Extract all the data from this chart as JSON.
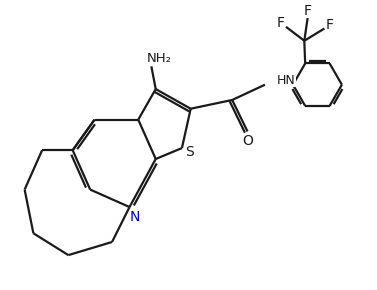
{
  "bg_color": "#ffffff",
  "bond_color": "#1a1a1a",
  "N_color": "#0000cc",
  "S_color": "#1a1a1a",
  "line_width": 1.6,
  "figsize": [
    3.77,
    2.9
  ],
  "dpi": 100,
  "xlim": [
    -2.0,
    6.5
  ],
  "ylim": [
    -3.2,
    3.0
  ],
  "font_size": 9
}
